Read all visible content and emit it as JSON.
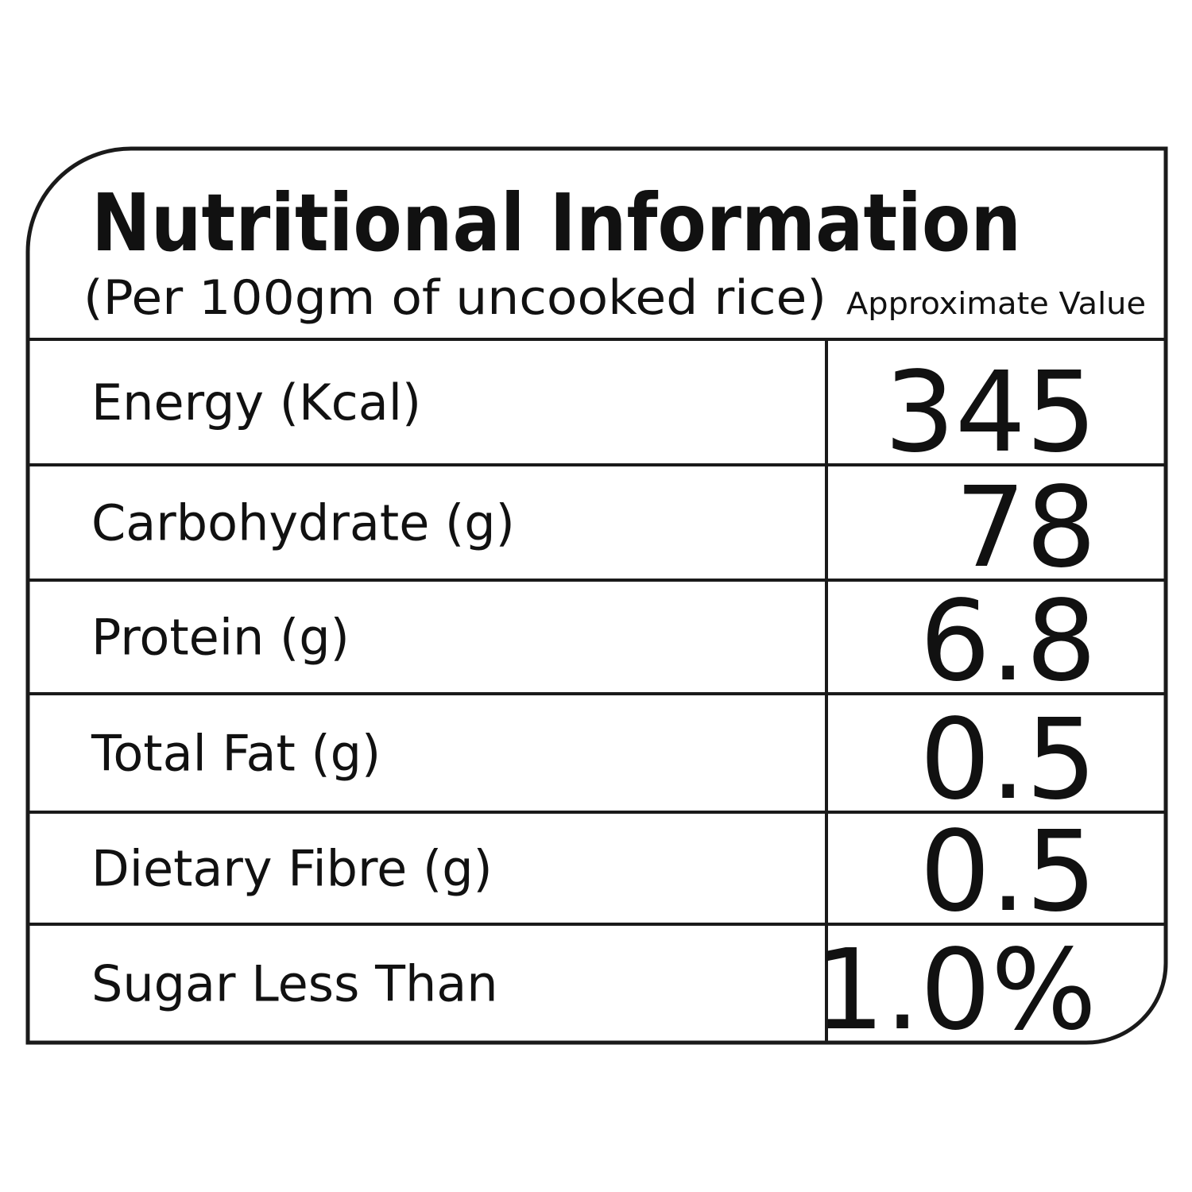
{
  "header": {
    "title": "Nutritional Information",
    "subtitle": "(Per 100gm of uncooked rice)",
    "column_label": "Approximate Value"
  },
  "table": {
    "rows": [
      [
        "Energy (Kcal)",
        "345"
      ],
      [
        "Carbohydrate (g)",
        "78"
      ],
      [
        "Protein (g)",
        "6.8"
      ],
      [
        "Total Fat (g)",
        "0.5"
      ],
      [
        "Dietary Fibre (g)",
        "0.5"
      ],
      [
        "Sugar Less Than",
        "1.0%"
      ]
    ]
  }
}
